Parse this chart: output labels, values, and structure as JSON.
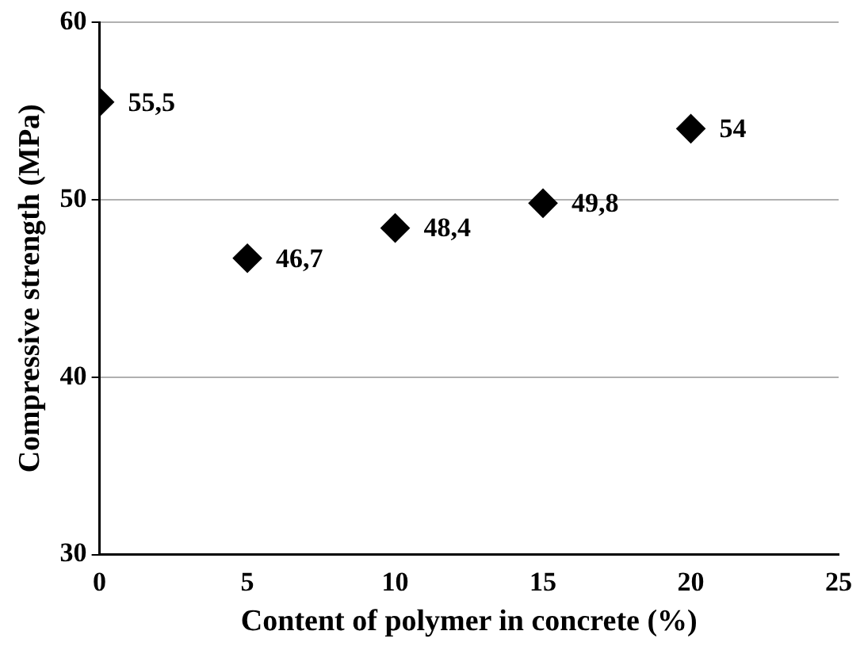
{
  "chart_data": {
    "type": "scatter",
    "xlabel": "Content of polymer in concrete (%)",
    "ylabel": "Compressive strength (MPa)",
    "x": [
      0,
      5,
      10,
      15,
      20
    ],
    "series": [
      {
        "color": "#000000",
        "values": [
          55.5,
          46.7,
          48.4,
          49.8,
          54
        ],
        "value_labels": [
          "55,5",
          "46,7",
          "48,4",
          "49,8",
          "54"
        ]
      }
    ],
    "xlim": [
      0,
      25
    ],
    "xticks": [
      0,
      5,
      10,
      15,
      20,
      25
    ],
    "ylim": [
      30,
      60
    ],
    "yticks": [
      30,
      40,
      50,
      60
    ],
    "grid": "y",
    "marker": "diamond",
    "legend": false
  }
}
